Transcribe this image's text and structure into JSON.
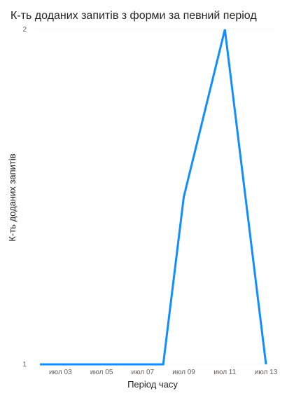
{
  "chart_data": {
    "type": "line",
    "title": "К-ть доданих запитів з форми за певний період",
    "xlabel": "Період часу",
    "ylabel": "К-ть доданих запитів",
    "x": [
      "2024-07-02",
      "2024-07-03",
      "2024-07-04",
      "2024-07-05",
      "2024-07-06",
      "2024-07-07",
      "2024-07-08",
      "2024-07-09",
      "2024-07-10",
      "2024-07-11",
      "2024-07-12",
      "2024-07-13"
    ],
    "x_tick_labels": [
      "июл 03",
      "июл 05",
      "июл 07",
      "июл 09",
      "июл 11",
      "июл 13"
    ],
    "ylim": [
      1,
      2
    ],
    "y_tick_labels": [
      "1",
      "2"
    ],
    "series": [
      {
        "values": [
          1,
          1,
          1,
          1,
          1,
          1,
          1,
          1.5,
          1.75,
          2,
          1.5,
          1
        ],
        "color": "#118dff"
      }
    ],
    "grid": true,
    "legend": "none"
  },
  "colors": {
    "series": "#118dff",
    "gridline": "#e1dfdd",
    "text": "#252423",
    "tick_text": "#605e5c"
  }
}
